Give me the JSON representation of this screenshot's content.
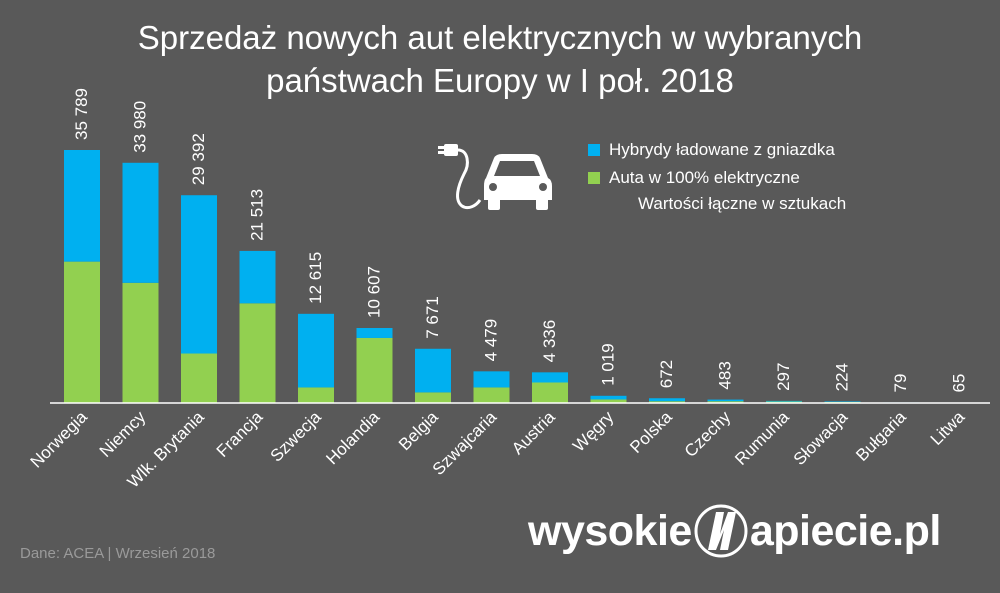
{
  "title_line1": "Sprzedaż nowych aut elektrycznych w wybranych",
  "title_line2": "państwach Europy w I poł. 2018",
  "legend": {
    "hybrid_label": "Hybrydy ładowane z gniazdka",
    "electric_label": "Auta w 100% elektryczne",
    "note": "Wartości łączne w sztukach"
  },
  "source": "Dane: ACEA | Wrzesień 2018",
  "brand": {
    "left": "wysokie",
    "right": "apiecie.pl"
  },
  "icons": {
    "car": "electric-car-icon",
    "plug": "plug-icon",
    "logo": "lightning-n-logo-icon"
  },
  "colors": {
    "hybrid": "#00b0f0",
    "electric": "#92d050",
    "background": "#595959",
    "axis": "#ffffff"
  },
  "chart_data": {
    "type": "bar",
    "stacked": true,
    "title": "Sprzedaż nowych aut elektrycznych w wybranych państwach Europy w I poł. 2018",
    "categories": [
      "Norwegia",
      "Niemcy",
      "Wlk. Brytania",
      "Francja",
      "Szwecja",
      "Holandia",
      "Belgia",
      "Szwajcaria",
      "Austria",
      "Węgry",
      "Polska",
      "Czechy",
      "Rumunia",
      "Słowacja",
      "Bułgaria",
      "Litwa"
    ],
    "totals": [
      35789,
      33980,
      29392,
      21513,
      12615,
      10607,
      7671,
      4479,
      4336,
      1019,
      672,
      483,
      297,
      224,
      79,
      65
    ],
    "total_labels": [
      "35 789",
      "33 980",
      "29 392",
      "21 513",
      "12 615",
      "10 607",
      "7 671",
      "4 479",
      "4 336",
      "1 019",
      "672",
      "483",
      "297",
      "224",
      "79",
      "65"
    ],
    "series": [
      {
        "name": "Auta w 100% elektryczne",
        "values": [
          20000,
          17000,
          7000,
          14100,
          2200,
          9200,
          1500,
          2200,
          2900,
          500,
          250,
          250,
          200,
          150,
          30,
          30
        ]
      },
      {
        "name": "Hybrydy ładowane z gniazdka",
        "values": [
          15789,
          16980,
          22392,
          7413,
          10415,
          1407,
          6171,
          2279,
          1436,
          519,
          422,
          233,
          97,
          74,
          49,
          35
        ]
      }
    ],
    "ylim": [
      0,
      36000
    ],
    "xlabel": "",
    "ylabel": "",
    "grid": false,
    "legend_position": "top-right"
  }
}
